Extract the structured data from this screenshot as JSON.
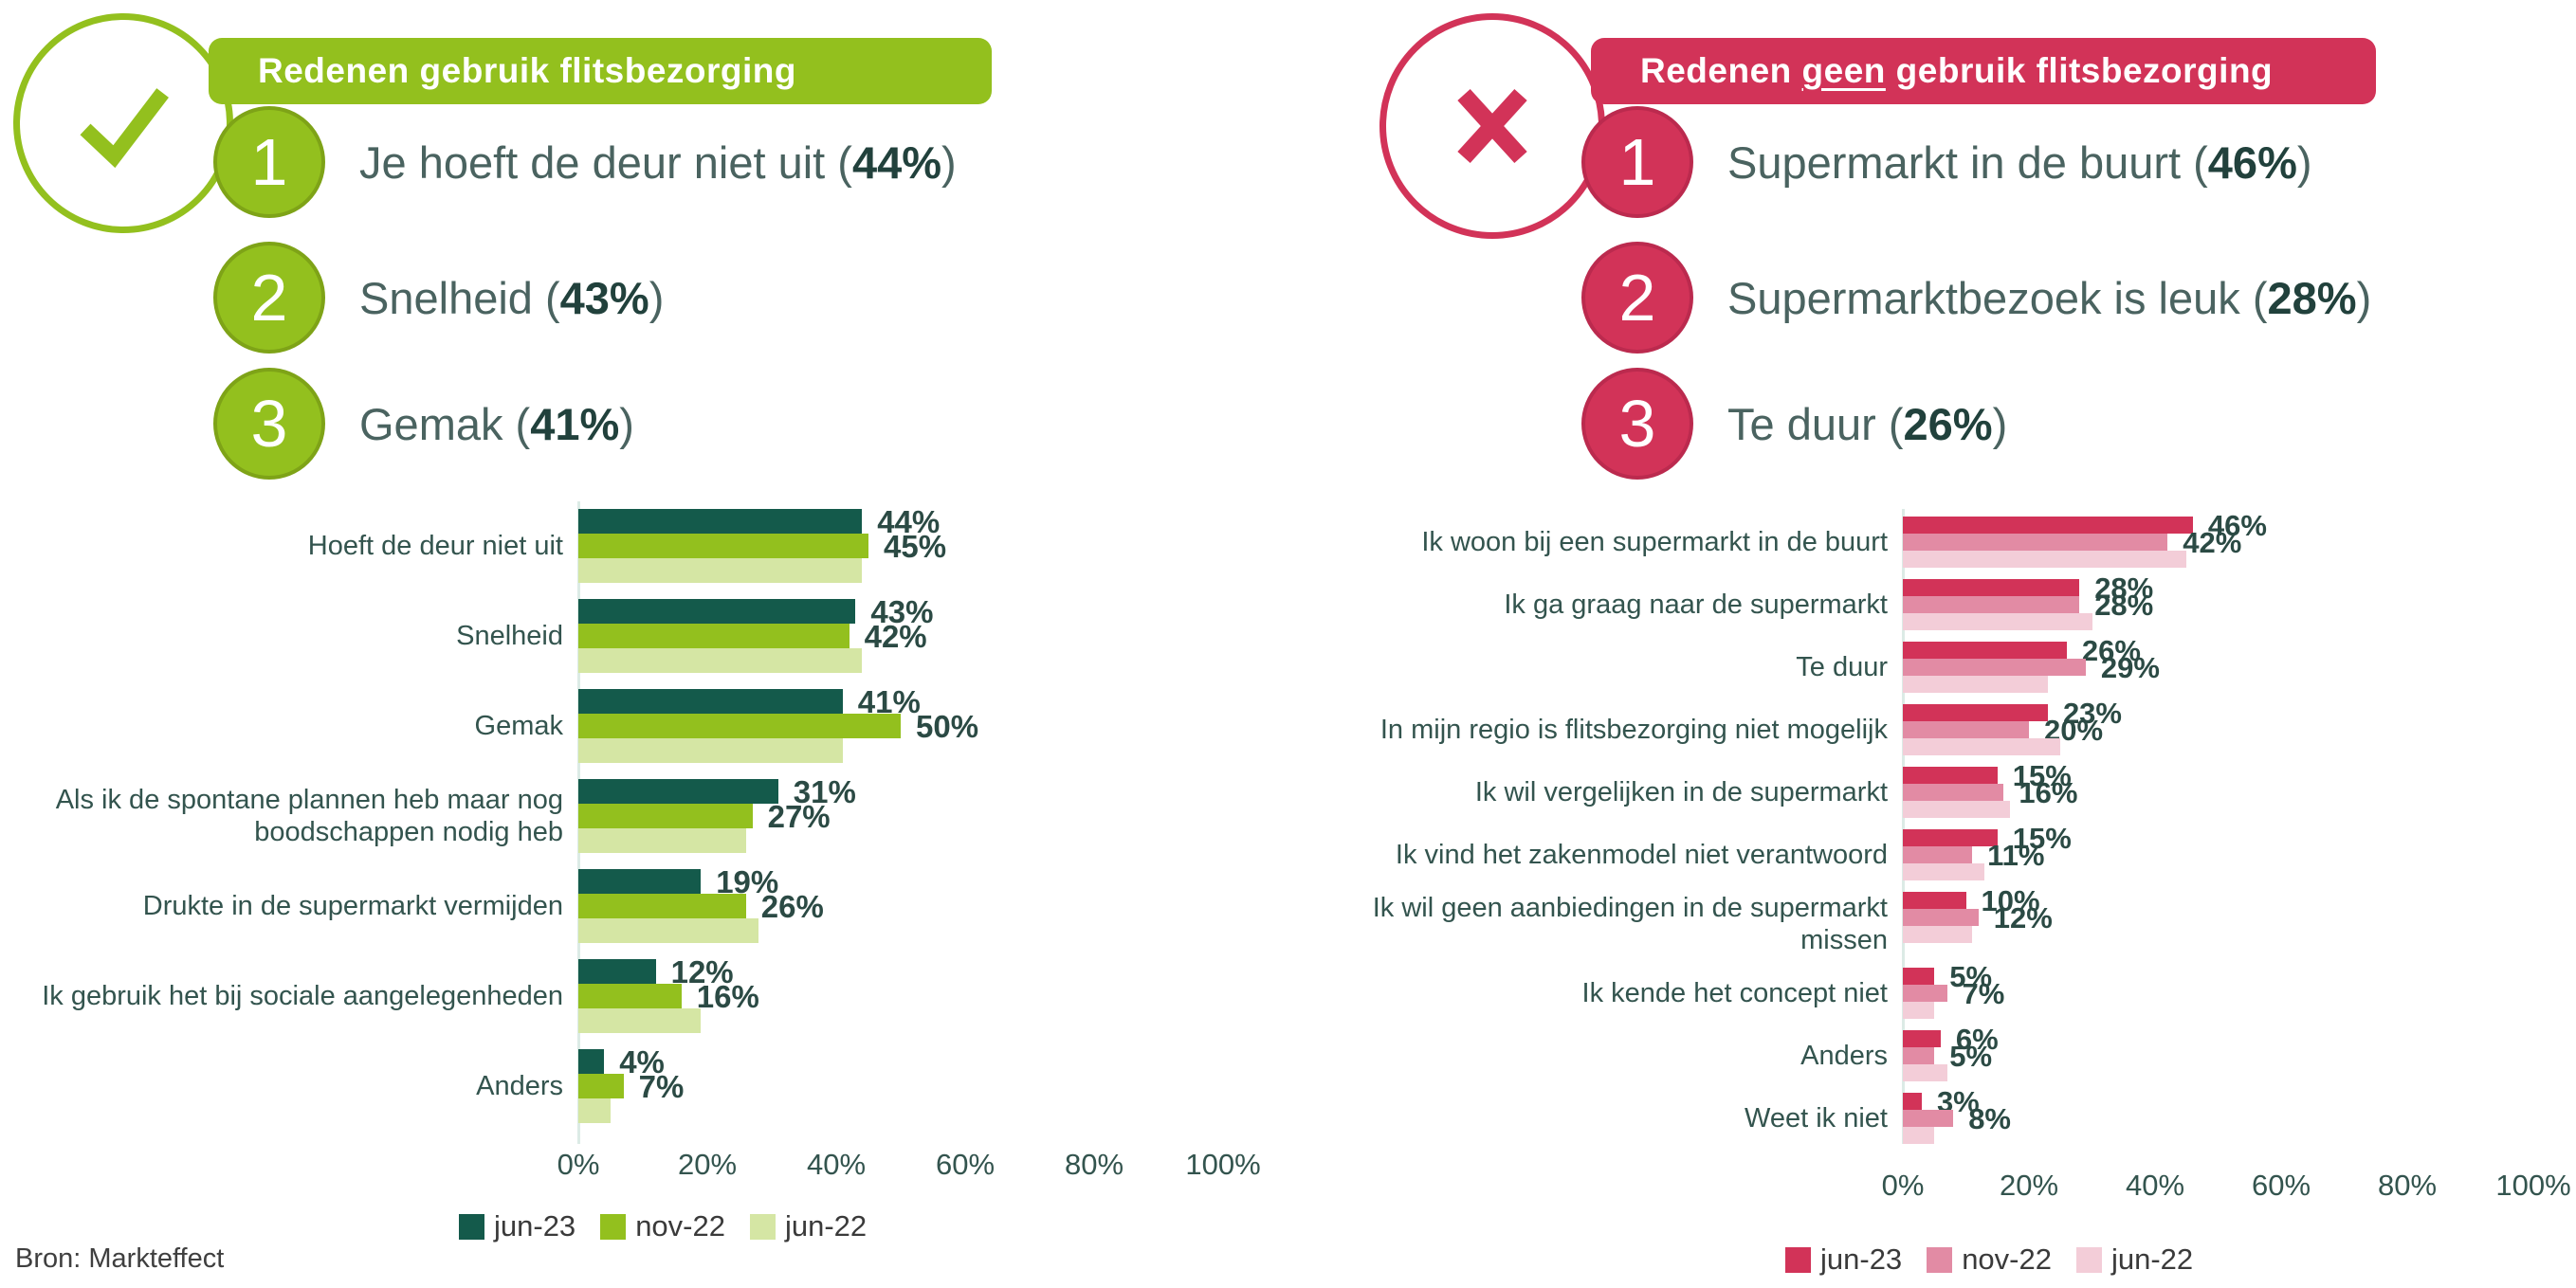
{
  "source": "Bron: Markteffect",
  "punct": {
    "open": " (",
    "close": ")"
  },
  "left_panel": {
    "header": "Redenen gebruik flitsbezorging",
    "icon": "check",
    "accent_color": "#93c01e",
    "top3": [
      {
        "rank": "1",
        "label": "Je hoeft de deur niet uit",
        "value": "44%"
      },
      {
        "rank": "2",
        "label": "Snelheid",
        "value": "43%"
      },
      {
        "rank": "3",
        "label": "Gemak",
        "value": "41%"
      }
    ]
  },
  "right_panel": {
    "header_prefix": "Redenen ",
    "header_underlined": "geen",
    "header_suffix": " gebruik flitsbezorging",
    "icon": "cross",
    "accent_color": "#d23358",
    "top3": [
      {
        "rank": "1",
        "label": "Supermarkt in de buurt",
        "value": "46%"
      },
      {
        "rank": "2",
        "label": "Supermarktbezoek is leuk",
        "value": "28%"
      },
      {
        "rank": "3",
        "label": "Te duur",
        "value": "26%"
      }
    ]
  },
  "chart_data": [
    {
      "type": "bar",
      "orientation": "horizontal",
      "title": "Redenen gebruik flitsbezorging",
      "categories": [
        "Hoeft de deur niet uit",
        "Snelheid",
        "Gemak",
        "Als ik de spontane plannen heb maar nog boodschappen nodig heb",
        "Drukte in de supermarkt vermijden",
        "Ik gebruik het bij sociale aangelegenheden",
        "Anders"
      ],
      "series": [
        {
          "name": "jun-23",
          "color": "#145a4b",
          "values": [
            44,
            43,
            41,
            31,
            19,
            12,
            4
          ],
          "labels_shown": true
        },
        {
          "name": "nov-22",
          "color": "#93c01e",
          "values": [
            45,
            42,
            50,
            27,
            26,
            16,
            7
          ],
          "labels_shown": true
        },
        {
          "name": "jun-22",
          "color": "#d5e6a4",
          "values": [
            44,
            44,
            41,
            26,
            28,
            19,
            5
          ],
          "labels_shown": false,
          "values_estimated": true
        }
      ],
      "x_ticks": [
        "0%",
        "20%",
        "40%",
        "60%",
        "80%",
        "100%"
      ],
      "xlim": [
        0,
        100
      ],
      "grid": false,
      "legend_position": "bottom"
    },
    {
      "type": "bar",
      "orientation": "horizontal",
      "title": "Redenen geen gebruik flitsbezorging",
      "categories": [
        "Ik woon bij een supermarkt in de buurt",
        "Ik ga graag naar de supermarkt",
        "Te duur",
        "In mijn regio is flitsbezorging niet mogelijk",
        "Ik wil vergelijken in de supermarkt",
        "Ik vind het zakenmodel niet verantwoord",
        "Ik wil geen aanbiedingen in de supermarkt missen",
        "Ik kende het concept niet",
        "Anders",
        "Weet ik niet"
      ],
      "series": [
        {
          "name": "jun-23",
          "color": "#d23358",
          "values": [
            46,
            28,
            26,
            23,
            15,
            15,
            10,
            5,
            6,
            3
          ],
          "labels_shown": true
        },
        {
          "name": "nov-22",
          "color": "#e28ba4",
          "values": [
            42,
            28,
            29,
            20,
            16,
            11,
            12,
            7,
            5,
            8
          ],
          "labels_shown": true
        },
        {
          "name": "jun-22",
          "color": "#f3cdd8",
          "values": [
            45,
            30,
            23,
            25,
            17,
            13,
            11,
            5,
            7,
            5
          ],
          "labels_shown": false,
          "values_estimated": true
        }
      ],
      "x_ticks": [
        "0%",
        "20%",
        "40%",
        "60%",
        "80%",
        "100%"
      ],
      "xlim": [
        0,
        100
      ],
      "grid": false,
      "legend_position": "bottom"
    }
  ]
}
